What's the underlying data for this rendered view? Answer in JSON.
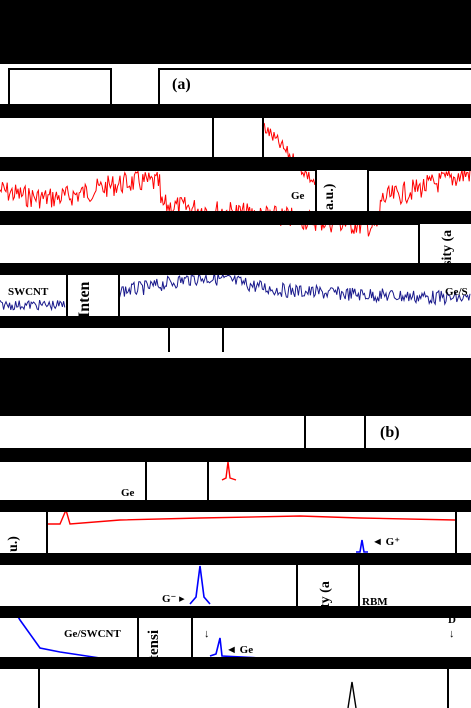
{
  "panel_a": {
    "tag": "(a)",
    "sample_label_1": "Ge",
    "ylabel_part_1": "a.u.)",
    "ylabel_part_2": "sity (a",
    "ylabel_part_3": "Inten",
    "sample_label_2": "SWCNT",
    "sample_label_3": "Ge/S",
    "trace_colors": {
      "top": "#ff0000",
      "bottom": "#1a1a8c"
    }
  },
  "panel_b": {
    "tag": "(b)",
    "sample_label_1": "Ge",
    "ylabel_part_1": "u.)",
    "annotation_g_plus": "G⁺",
    "ylabel_part_2": "ty (a",
    "annotation_rbm": "RBM",
    "annotation_g_minus": "G⁻",
    "sample_label_2": "Ge/SWCNT",
    "ylabel_part_3": "tensi",
    "annotation_ge": "Ge",
    "annotation_d": "D",
    "trace_colors": {
      "top": "#ff0000",
      "bottom": "#0000ff"
    }
  }
}
